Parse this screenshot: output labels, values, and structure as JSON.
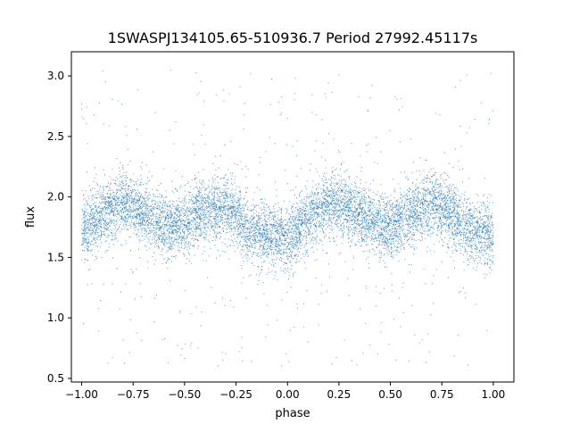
{
  "chart_data": {
    "type": "scatter",
    "title": "1SWASPJ134105.65-510936.7 Period 27992.45117s",
    "xlabel": "phase",
    "ylabel": "flux",
    "xlim": [
      -1.05,
      1.1
    ],
    "ylim": [
      0.47,
      3.2
    ],
    "x_ticks": [
      -1.0,
      -0.75,
      -0.5,
      -0.25,
      0.0,
      0.25,
      0.5,
      0.75,
      1.0
    ],
    "x_tick_labels": [
      "−1.00",
      "−0.75",
      "−0.50",
      "−0.25",
      "0.00",
      "0.25",
      "0.50",
      "0.75",
      "1.00"
    ],
    "y_ticks": [
      0.5,
      1.0,
      1.5,
      2.0,
      2.5,
      3.0
    ],
    "y_tick_labels": [
      "0.5",
      "1.0",
      "1.5",
      "2.0",
      "2.5",
      "3.0"
    ],
    "grid": false,
    "legend": "none",
    "marker_color": "#1f77b4",
    "series": [
      {
        "phase": [
          -1.0,
          -0.9,
          -0.8,
          -0.75,
          -0.7,
          -0.6,
          -0.5,
          -0.4,
          -0.3,
          -0.25,
          -0.2,
          -0.1,
          0.0,
          0.1,
          0.2,
          0.25,
          0.3,
          0.4,
          0.5,
          0.6,
          0.7,
          0.75,
          0.8,
          0.9,
          1.0
        ],
        "mean_flux": [
          1.7,
          1.85,
          1.95,
          1.92,
          1.87,
          1.75,
          1.78,
          1.88,
          1.92,
          1.85,
          1.72,
          1.68,
          1.65,
          1.82,
          1.95,
          1.93,
          1.9,
          1.8,
          1.75,
          1.85,
          1.95,
          1.92,
          1.85,
          1.72,
          1.68
        ],
        "scatter_sigma": 0.13,
        "outlier_range": [
          0.6,
          3.05
        ],
        "point_count": 9000
      }
    ]
  }
}
